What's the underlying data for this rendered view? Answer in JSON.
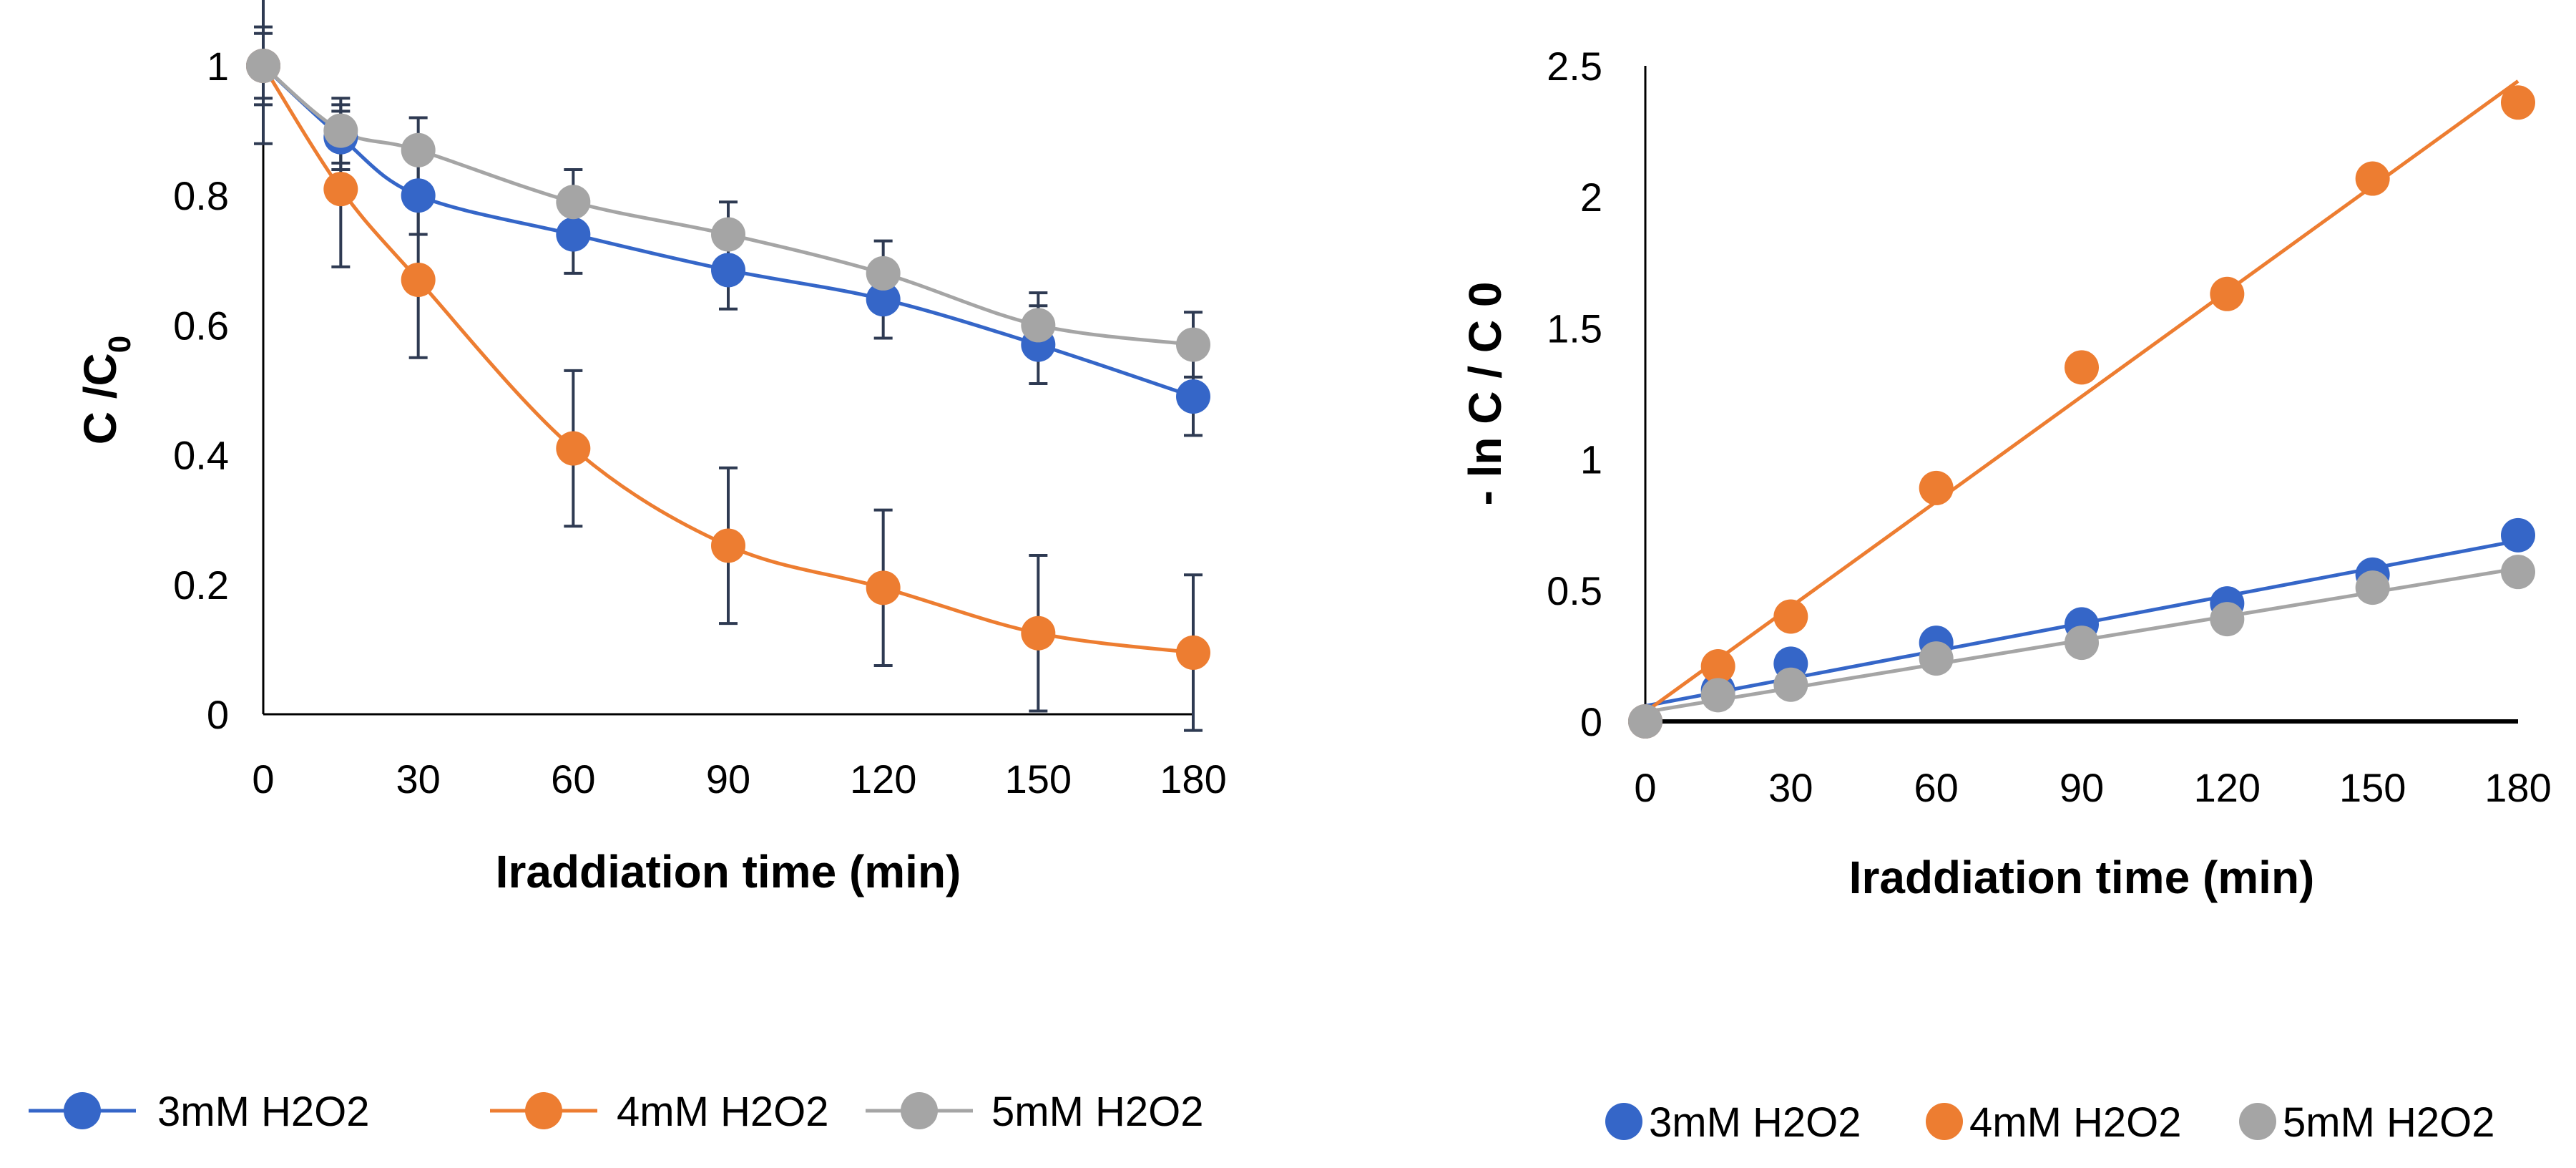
{
  "colors": {
    "blue": "#3566C8",
    "orange": "#ED7D31",
    "gray": "#A5A5A5",
    "errorbar": "#2E3A52"
  },
  "chart_data": [
    {
      "type": "line",
      "smooth": true,
      "x": [
        0,
        15,
        30,
        60,
        90,
        120,
        150,
        180
      ],
      "xticks": [
        0,
        30,
        60,
        90,
        120,
        150,
        180
      ],
      "xlim": [
        0,
        180
      ],
      "ylim": [
        0,
        1
      ],
      "yticks": [
        0,
        0.2,
        0.4,
        0.6,
        0.8,
        1
      ],
      "ytick_labels": [
        "0",
        "0.2",
        "0.4",
        "0.6",
        "0.8",
        "1"
      ],
      "xlabel": "Iraddiation time (min)",
      "ylabel_main": "C /C",
      "ylabel_sub": "0",
      "error_bars": true,
      "legend_position": "bottom",
      "series": [
        {
          "name": "3mM H2O2",
          "color_key": "blue",
          "values": [
            1.0,
            0.89,
            0.8,
            0.74,
            0.685,
            0.64,
            0.57,
            0.49
          ],
          "errors": [
            0.06,
            0.05,
            0.06,
            0.06,
            0.06,
            0.06,
            0.06,
            0.06
          ]
        },
        {
          "name": "4mM H2O2",
          "color_key": "orange",
          "values": [
            1.0,
            0.81,
            0.67,
            0.41,
            0.26,
            0.195,
            0.125,
            0.095
          ],
          "errors": [
            0.12,
            0.12,
            0.12,
            0.12,
            0.12,
            0.12,
            0.12,
            0.12
          ]
        },
        {
          "name": "5mM H2O2",
          "color_key": "gray",
          "values": [
            1.0,
            0.9,
            0.87,
            0.79,
            0.74,
            0.68,
            0.6,
            0.57
          ],
          "errors": [
            0.05,
            0.05,
            0.05,
            0.05,
            0.05,
            0.05,
            0.05,
            0.05
          ]
        }
      ]
    },
    {
      "type": "scatter",
      "trendline": "linear",
      "x": [
        0,
        15,
        30,
        60,
        90,
        120,
        150,
        180
      ],
      "xticks": [
        0,
        30,
        60,
        90,
        120,
        150,
        180
      ],
      "xlim": [
        0,
        180
      ],
      "ylim": [
        0,
        2.5
      ],
      "yticks": [
        0,
        0.5,
        1,
        1.5,
        2,
        2.5
      ],
      "ytick_labels": [
        "0",
        "0.5",
        "1",
        "1.5",
        "2",
        "2.5"
      ],
      "xlabel": "Iraddiation time (min)",
      "ylabel": "- ln C / C 0",
      "legend_position": "bottom",
      "series": [
        {
          "name": "3mM H2O2",
          "color_key": "blue",
          "values": [
            0,
            0.12,
            0.22,
            0.3,
            0.37,
            0.45,
            0.56,
            0.71
          ]
        },
        {
          "name": "4mM H2O2",
          "color_key": "orange",
          "values": [
            0,
            0.21,
            0.4,
            0.89,
            1.35,
            1.63,
            2.07,
            2.36
          ]
        },
        {
          "name": "5mM H2O2",
          "color_key": "gray",
          "values": [
            0,
            0.1,
            0.14,
            0.24,
            0.3,
            0.39,
            0.51,
            0.57
          ]
        }
      ]
    }
  ]
}
